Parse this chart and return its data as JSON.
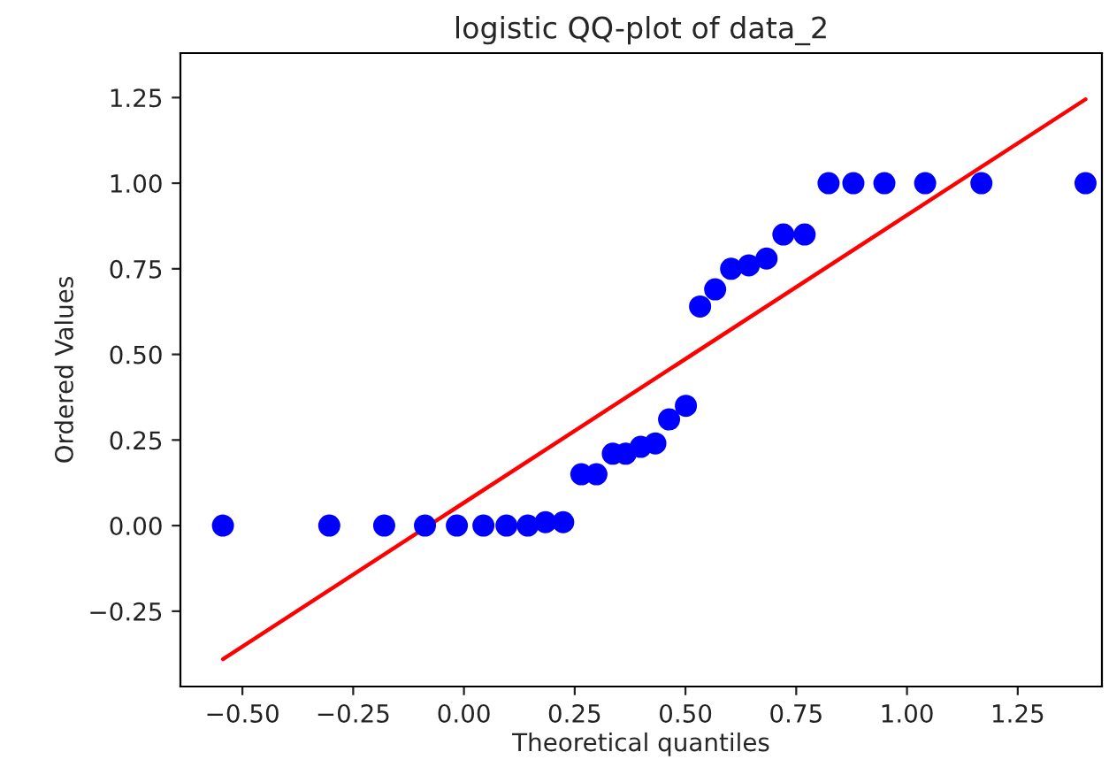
{
  "chart_data": {
    "type": "scatter",
    "title": "logistic QQ-plot of data_2",
    "xlabel": "Theoretical quantiles",
    "ylabel": "Ordered Values",
    "series": [
      {
        "color": "#0000ff",
        "marker": "circle",
        "x": [
          -0.544,
          -0.304,
          -0.18,
          -0.088,
          -0.016,
          0.044,
          0.096,
          0.144,
          0.184,
          0.224,
          0.265,
          0.299,
          0.336,
          0.365,
          0.399,
          0.432,
          0.463,
          0.501,
          0.533,
          0.567,
          0.603,
          0.643,
          0.683,
          0.721,
          0.769,
          0.823,
          0.879,
          0.949,
          1.041,
          1.168,
          1.403
        ],
        "values": [
          0,
          0,
          0,
          0,
          0,
          0,
          0,
          0,
          0.01,
          0.01,
          0.15,
          0.15,
          0.21,
          0.21,
          0.23,
          0.24,
          0.31,
          0.35,
          0.64,
          0.69,
          0.75,
          0.76,
          0.78,
          0.85,
          0.85,
          1.0,
          1.0,
          1.0,
          1.0,
          1.0,
          1.0
        ]
      },
      {
        "type": "line",
        "color": "#ff0000",
        "line_style": "solid",
        "x": [
          -0.544,
          1.403
        ],
        "values": [
          -0.39,
          1.245
        ]
      }
    ],
    "xlim": [
      -0.64,
      1.44
    ],
    "ylim": [
      -0.47,
      1.38
    ],
    "xticks": [
      {
        "value": -0.5,
        "label": "−0.50"
      },
      {
        "value": -0.25,
        "label": "−0.25"
      },
      {
        "value": 0,
        "label": "0.00"
      },
      {
        "value": 0.25,
        "label": "0.25"
      },
      {
        "value": 0.5,
        "label": "0.50"
      },
      {
        "value": 0.75,
        "label": "0.75"
      },
      {
        "value": 1.0,
        "label": "1.00"
      },
      {
        "value": 1.25,
        "label": "1.25"
      }
    ],
    "yticks": [
      {
        "value": -0.25,
        "label": "−0.25"
      },
      {
        "value": 0,
        "label": "0.00"
      },
      {
        "value": 0.25,
        "label": "0.25"
      },
      {
        "value": 0.5,
        "label": "0.50"
      },
      {
        "value": 0.75,
        "label": "0.75"
      },
      {
        "value": 1.0,
        "label": "1.00"
      },
      {
        "value": 1.25,
        "label": "1.25"
      }
    ],
    "grid": false,
    "legend": false
  }
}
